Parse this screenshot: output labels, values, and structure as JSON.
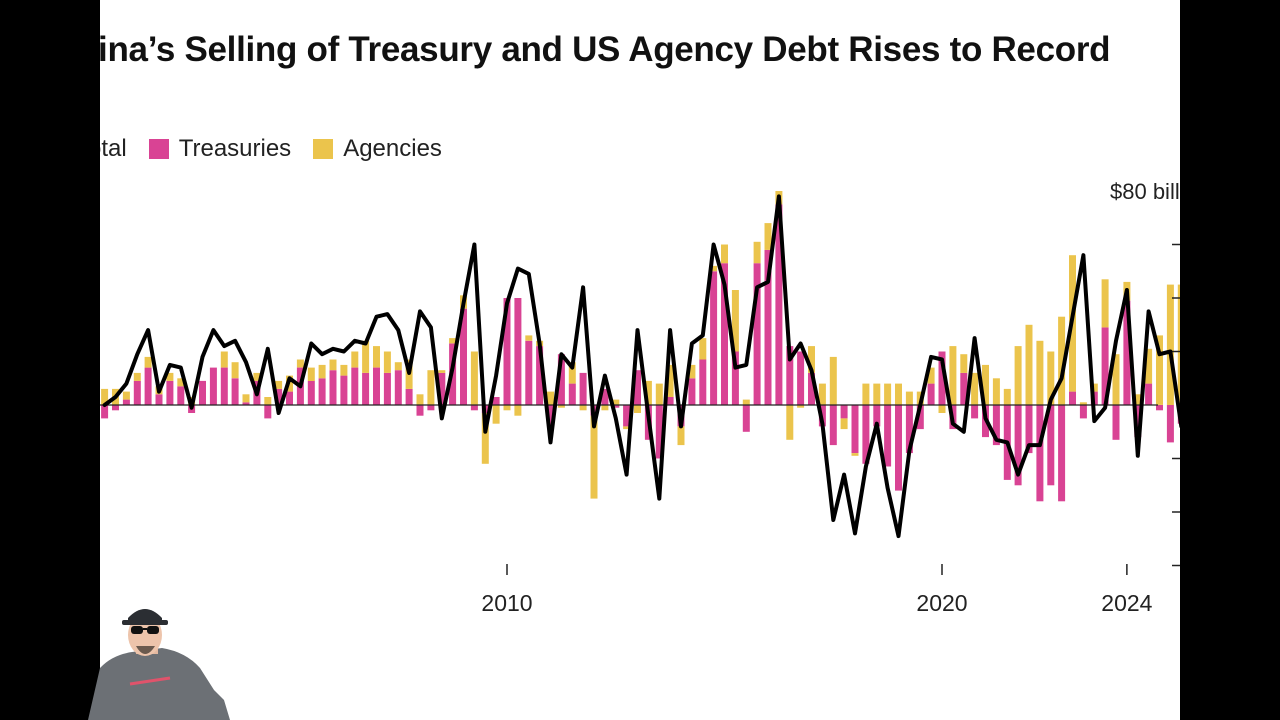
{
  "chart_data": {
    "type": "bar",
    "title": "China’s Selling of Treasury and US Agency Debt Rises to Record",
    "legend": [
      {
        "name": "Total",
        "kind": "line",
        "color": "#000000"
      },
      {
        "name": "Treasuries",
        "kind": "bar",
        "color": "#d94394"
      },
      {
        "name": "Agencies",
        "kind": "bar",
        "color": "#ebc44c"
      }
    ],
    "y_axis_label": "$80 billion",
    "ylim": [
      -60,
      80
    ],
    "y_ticks": [
      -60,
      -40,
      -20,
      0,
      20,
      40,
      60,
      80
    ],
    "x_ticks": [
      "2000",
      "2010",
      "2020",
      "2024"
    ],
    "x_tick_positions": [
      2000,
      2010,
      2020,
      2024.25
    ],
    "xlim": [
      2000.6,
      2025
    ],
    "x_unit": "quarter",
    "x_start": 2000.75,
    "x_step": 0.25,
    "series": [
      {
        "name": "Treasuries",
        "color": "#d94394",
        "values": [
          -5,
          -2,
          2,
          9,
          14,
          4,
          9,
          7,
          -3,
          9,
          14,
          14,
          10,
          1,
          9,
          -5,
          6,
          5,
          14,
          9,
          10,
          13,
          11,
          14,
          12,
          14,
          12,
          13,
          6,
          -4,
          -2,
          12,
          23,
          36,
          -2,
          -3,
          3,
          40,
          40,
          24,
          22,
          -8,
          19,
          8,
          12,
          -4,
          6,
          -1,
          -8,
          13,
          -13,
          -20,
          3,
          -8,
          10,
          17,
          50,
          53,
          20,
          -10,
          53,
          58,
          75,
          22,
          20,
          12,
          -8,
          -15,
          -5,
          -18,
          -22,
          -8,
          -23,
          -32,
          -18,
          -9,
          8,
          20,
          -9,
          12,
          -5,
          -12,
          -15,
          -28,
          -30,
          -18,
          -36,
          -30,
          -36,
          5,
          -5,
          5,
          29,
          -13,
          39,
          -12,
          8,
          -2,
          -14,
          -7,
          4,
          7,
          -14,
          -12,
          -23,
          -30,
          -44
        ]
      },
      {
        "name": "Agencies",
        "color": "#ebc44c",
        "values": [
          6,
          6,
          3,
          3,
          4,
          3,
          3,
          3,
          3,
          0,
          0,
          6,
          6,
          3,
          3,
          3,
          3,
          6,
          3,
          5,
          5,
          4,
          4,
          6,
          12,
          8,
          8,
          3,
          11,
          4,
          13,
          1,
          2,
          5,
          20,
          -19,
          -7,
          -2,
          -4,
          2,
          2,
          5,
          -1,
          8,
          -2,
          -31,
          -2,
          2,
          -1,
          -3,
          9,
          8,
          12,
          -7,
          5,
          8,
          2,
          7,
          23,
          2,
          8,
          10,
          5,
          -13,
          -1,
          10,
          8,
          18,
          -4,
          -1,
          8,
          8,
          8,
          8,
          5,
          5,
          6,
          -3,
          22,
          7,
          12,
          15,
          10,
          6,
          22,
          30,
          24,
          20,
          33,
          51,
          1,
          3,
          18,
          19,
          7,
          4,
          13,
          26,
          45,
          45,
          27,
          26,
          17,
          -3,
          10,
          2,
          -3,
          -9
        ]
      }
    ],
    "total": [
      0,
      3,
      8,
      19,
      28,
      5,
      15,
      14,
      -1,
      18,
      28,
      22,
      24,
      16,
      4,
      21,
      -3,
      10,
      7,
      23,
      19,
      21,
      20,
      24,
      23,
      33,
      34,
      28,
      12,
      35,
      29,
      -5,
      14,
      38,
      60,
      -10,
      11,
      38,
      51,
      49,
      23,
      -14,
      19,
      14,
      44,
      -8,
      11,
      -5,
      -26,
      28,
      -4,
      -35,
      28,
      -8,
      23,
      26,
      60,
      45,
      14,
      15,
      44,
      46,
      78,
      17,
      23,
      13,
      -7,
      -43,
      -26,
      -48,
      -23,
      -7,
      -31,
      -49,
      -17,
      0,
      18,
      17,
      -7,
      -10,
      25,
      -5,
      -13,
      -14,
      -26,
      -15,
      -15,
      2,
      10,
      33,
      56,
      -6,
      -1,
      24,
      43,
      -19,
      35,
      19,
      20,
      -8,
      -12,
      1,
      -9,
      -26,
      -16,
      -7,
      -53
    ]
  },
  "overlay": {
    "webcam_icon": "person-webcam-icon"
  }
}
